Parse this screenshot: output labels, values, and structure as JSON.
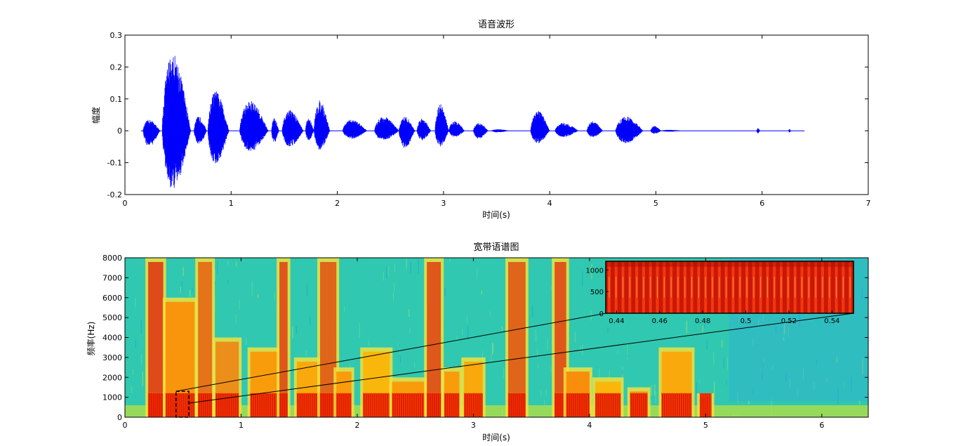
{
  "chart_data": [
    {
      "type": "line",
      "title": "语音波形",
      "xlabel": "时间(s)",
      "ylabel": "幅度",
      "xlim": [
        0,
        7
      ],
      "ylim": [
        -0.2,
        0.3
      ],
      "xticks": [
        "0",
        "1",
        "2",
        "3",
        "4",
        "5",
        "6",
        "7"
      ],
      "yticks": [
        "-0.2",
        "-0.1",
        "0",
        "0.1",
        "0.2",
        "0.3"
      ],
      "series_color": "#0000ff",
      "grid": false,
      "envelope_segments": [
        {
          "t0": 0.17,
          "t1": 0.33,
          "pos": 0.035,
          "neg": -0.05
        },
        {
          "t0": 0.35,
          "t1": 0.62,
          "pos": 0.245,
          "neg": -0.185
        },
        {
          "t0": 0.65,
          "t1": 0.77,
          "pos": 0.045,
          "neg": -0.045
        },
        {
          "t0": 0.78,
          "t1": 0.98,
          "pos": 0.125,
          "neg": -0.105
        },
        {
          "t0": 1.08,
          "t1": 1.35,
          "pos": 0.095,
          "neg": -0.065
        },
        {
          "t0": 1.38,
          "t1": 1.45,
          "pos": 0.04,
          "neg": -0.04
        },
        {
          "t0": 1.48,
          "t1": 1.68,
          "pos": 0.065,
          "neg": -0.05
        },
        {
          "t0": 1.7,
          "t1": 1.78,
          "pos": 0.04,
          "neg": -0.03
        },
        {
          "t0": 1.78,
          "t1": 1.93,
          "pos": 0.095,
          "neg": -0.06
        },
        {
          "t0": 2.05,
          "t1": 2.28,
          "pos": 0.035,
          "neg": -0.025
        },
        {
          "t0": 2.35,
          "t1": 2.58,
          "pos": 0.045,
          "neg": -0.03
        },
        {
          "t0": 2.58,
          "t1": 2.73,
          "pos": 0.045,
          "neg": -0.055
        },
        {
          "t0": 2.75,
          "t1": 2.88,
          "pos": 0.04,
          "neg": -0.03
        },
        {
          "t0": 2.92,
          "t1": 3.05,
          "pos": 0.085,
          "neg": -0.05
        },
        {
          "t0": 3.05,
          "t1": 3.2,
          "pos": 0.03,
          "neg": -0.02
        },
        {
          "t0": 3.28,
          "t1": 3.42,
          "pos": 0.025,
          "neg": -0.025
        },
        {
          "t0": 3.45,
          "t1": 3.62,
          "pos": 0.005,
          "neg": -0.005
        },
        {
          "t0": 3.82,
          "t1": 4.0,
          "pos": 0.065,
          "neg": -0.04
        },
        {
          "t0": 4.05,
          "t1": 4.27,
          "pos": 0.025,
          "neg": -0.02
        },
        {
          "t0": 4.35,
          "t1": 4.5,
          "pos": 0.03,
          "neg": -0.02
        },
        {
          "t0": 4.62,
          "t1": 4.88,
          "pos": 0.045,
          "neg": -0.04
        },
        {
          "t0": 4.95,
          "t1": 5.05,
          "pos": 0.015,
          "neg": -0.01
        },
        {
          "t0": 5.05,
          "t1": 5.25,
          "pos": 0.003,
          "neg": -0.003
        },
        {
          "t0": 5.95,
          "t1": 5.98,
          "pos": 0.008,
          "neg": -0.008
        },
        {
          "t0": 6.25,
          "t1": 6.27,
          "pos": 0.006,
          "neg": -0.006
        }
      ],
      "signal_end": 6.4
    },
    {
      "type": "heatmap",
      "title": "宽带语谱图",
      "xlabel": "时间(s)",
      "ylabel": "频率(Hz)",
      "xlim": [
        0,
        6.4
      ],
      "ylim": [
        0,
        8000
      ],
      "xticks": [
        "0",
        "1",
        "2",
        "3",
        "4",
        "5",
        "6"
      ],
      "yticks": [
        "0",
        "1000",
        "2000",
        "3000",
        "4000",
        "5000",
        "6000",
        "7000",
        "8000"
      ],
      "colormap": "jet",
      "background_color": "#30c8b0",
      "energy_columns": [
        {
          "t0": 0.2,
          "t1": 0.33,
          "f_top": 8000,
          "color": "#e03010"
        },
        {
          "t0": 0.35,
          "t1": 0.6,
          "f_top": 6000,
          "color": "#ff8800"
        },
        {
          "t0": 0.63,
          "t1": 0.75,
          "f_top": 8000,
          "color": "#e86010"
        },
        {
          "t0": 0.78,
          "t1": 0.98,
          "f_top": 4000,
          "color": "#f08010"
        },
        {
          "t0": 1.08,
          "t1": 1.32,
          "f_top": 3500,
          "color": "#ff9000"
        },
        {
          "t0": 1.33,
          "t1": 1.4,
          "f_top": 8000,
          "color": "#e04010"
        },
        {
          "t0": 1.48,
          "t1": 1.68,
          "f_top": 3000,
          "color": "#ffa000"
        },
        {
          "t0": 1.68,
          "t1": 1.82,
          "f_top": 8000,
          "color": "#e05010"
        },
        {
          "t0": 1.82,
          "t1": 1.95,
          "f_top": 2500,
          "color": "#ff9000"
        },
        {
          "t0": 2.05,
          "t1": 2.28,
          "f_top": 3500,
          "color": "#ffb000"
        },
        {
          "t0": 2.3,
          "t1": 2.58,
          "f_top": 2000,
          "color": "#ff9000"
        },
        {
          "t0": 2.6,
          "t1": 2.72,
          "f_top": 8000,
          "color": "#e04010"
        },
        {
          "t0": 2.75,
          "t1": 2.88,
          "f_top": 2500,
          "color": "#ff9000"
        },
        {
          "t0": 2.92,
          "t1": 3.08,
          "f_top": 3000,
          "color": "#ffa000"
        },
        {
          "t0": 3.3,
          "t1": 3.45,
          "f_top": 8000,
          "color": "#e05010"
        },
        {
          "t0": 3.7,
          "t1": 3.8,
          "f_top": 8000,
          "color": "#e04010"
        },
        {
          "t0": 3.8,
          "t1": 4.0,
          "f_top": 2500,
          "color": "#ff8000"
        },
        {
          "t0": 4.05,
          "t1": 4.27,
          "f_top": 2000,
          "color": "#ffb000"
        },
        {
          "t0": 4.35,
          "t1": 4.5,
          "f_top": 1500,
          "color": "#ff8000"
        },
        {
          "t0": 4.62,
          "t1": 4.88,
          "f_top": 3500,
          "color": "#ffa000"
        },
        {
          "t0": 4.95,
          "t1": 5.05,
          "f_top": 1200,
          "color": "#ff8000"
        }
      ],
      "low_band": {
        "f_top": 1200,
        "color": "#e01000"
      },
      "zoom_region": {
        "t0": 0.44,
        "t1": 0.55,
        "f0": 0,
        "f1": 1300
      },
      "inset": {
        "xlim": [
          0.435,
          0.55
        ],
        "ylim": [
          0,
          1200
        ],
        "xticks": [
          "0.44",
          "0.46",
          "0.48",
          "0.5",
          "0.52",
          "0.54"
        ],
        "yticks": [
          "0",
          "500",
          "1000"
        ],
        "harmonic_count": 36
      }
    }
  ]
}
